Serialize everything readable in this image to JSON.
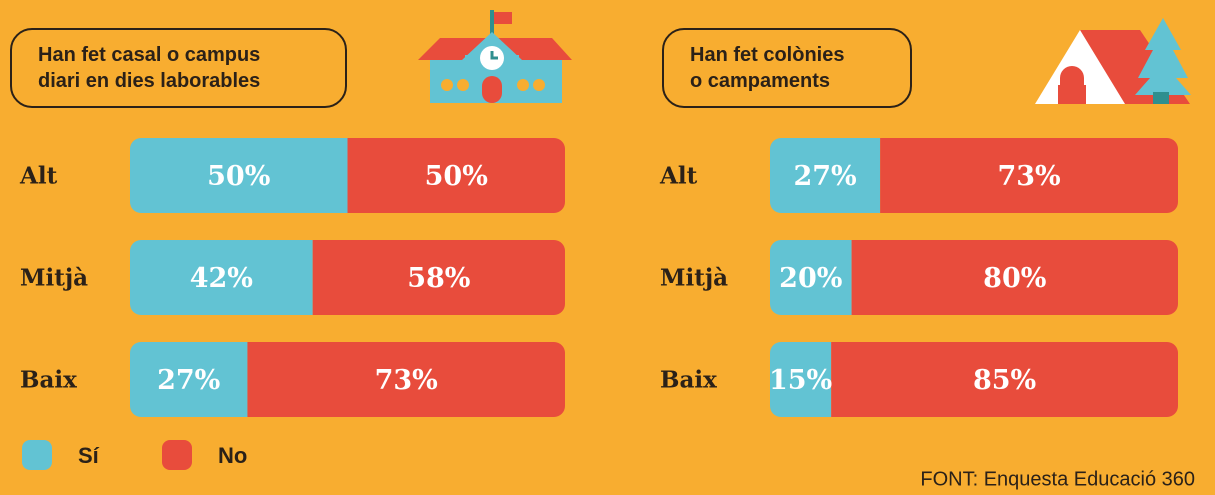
{
  "chart_data": [
    {
      "type": "stacked-bar",
      "title": "Han fet casal o campus diari en dies laborables",
      "categories": [
        "Alt",
        "Mitjà",
        "Baix"
      ],
      "xlim": [
        0,
        100
      ],
      "series": [
        {
          "name": "Sí",
          "color": "#62c3d3",
          "values": [
            50,
            42,
            27
          ],
          "value_labels": [
            "50%",
            "42%",
            "27%"
          ]
        },
        {
          "name": "No",
          "color": "#e84c3c",
          "values": [
            50,
            58,
            73
          ],
          "value_labels": [
            "50%",
            "58%",
            "73%"
          ]
        }
      ]
    },
    {
      "type": "stacked-bar",
      "title": "Han fet colònies o campaments",
      "categories": [
        "Alt",
        "Mitjà",
        "Baix"
      ],
      "xlim": [
        0,
        100
      ],
      "series": [
        {
          "name": "Sí",
          "color": "#62c3d3",
          "values": [
            27,
            20,
            15
          ],
          "value_labels": [
            "27%",
            "20%",
            "15%"
          ]
        },
        {
          "name": "No",
          "color": "#e84c3c",
          "values": [
            73,
            80,
            85
          ],
          "value_labels": [
            "73%",
            "80%",
            "85%"
          ]
        }
      ]
    }
  ],
  "source": "FONT: Enquesta Educació 360"
}
